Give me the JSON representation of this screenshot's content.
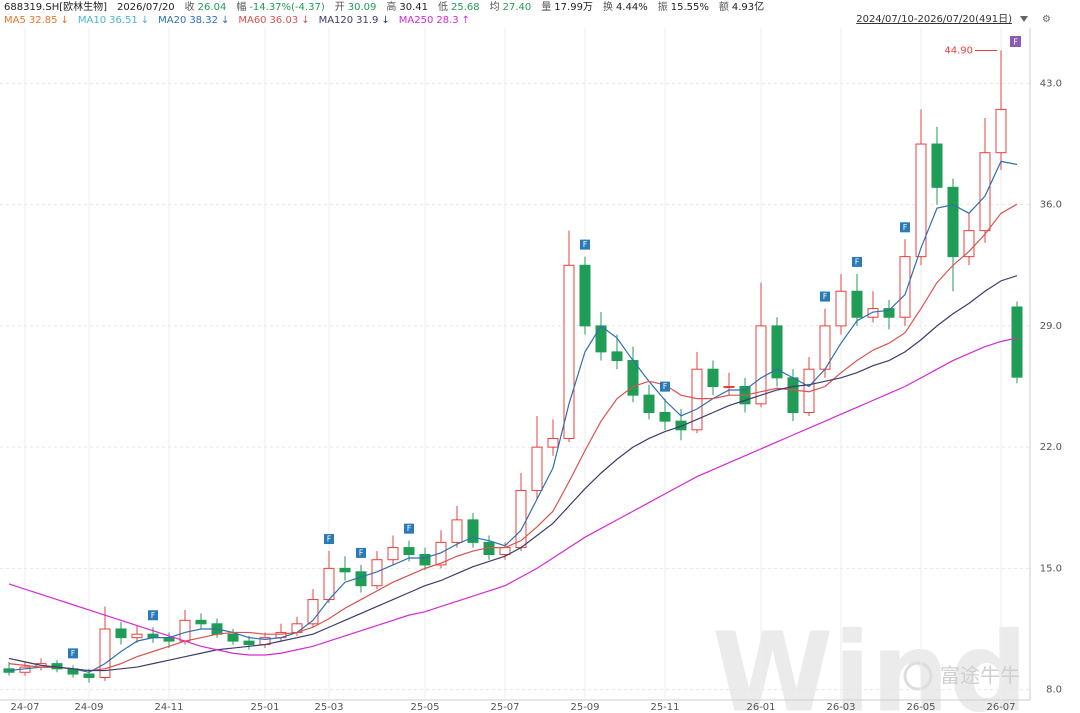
{
  "header": {
    "fields": [
      {
        "value": "688319.SH[欧林生物]",
        "color": "#222"
      },
      {
        "value": "2026/07/20",
        "color": "#222"
      },
      {
        "label": "收",
        "value": "26.04",
        "color": "#1f9d55"
      },
      {
        "label": "幅",
        "value": "-14.37%(-4.37)",
        "color": "#1f9d55"
      },
      {
        "label": "开",
        "value": "30.09",
        "color": "#1f9d55"
      },
      {
        "label": "高",
        "value": "30.41",
        "color": "#222"
      },
      {
        "label": "低",
        "value": "25.68",
        "color": "#1f9d55"
      },
      {
        "label": "均",
        "value": "27.40",
        "color": "#1f9d55"
      },
      {
        "label": "量",
        "value": "17.99万",
        "color": "#222"
      },
      {
        "label": "换",
        "value": "4.44%",
        "color": "#222"
      },
      {
        "label": "振",
        "value": "15.55%",
        "color": "#222"
      },
      {
        "label": "额",
        "value": "4.93亿",
        "color": "#222"
      }
    ],
    "range": "2024/07/10-2026/07/20(491日)"
  },
  "watermarks": [
    "Wind",
    "富途牛牛"
  ],
  "chart_data": {
    "type": "candlestick",
    "categories": [
      null,
      "24-07",
      null,
      null,
      null,
      "24-09",
      null,
      null,
      null,
      null,
      "24-11",
      null,
      null,
      null,
      null,
      null,
      "25-01",
      null,
      null,
      null,
      "25-03",
      null,
      null,
      null,
      null,
      null,
      "25-05",
      null,
      null,
      null,
      null,
      "25-07",
      null,
      null,
      null,
      null,
      "25-09",
      null,
      null,
      null,
      null,
      "25-11",
      null,
      null,
      null,
      null,
      null,
      "26-01",
      null,
      null,
      null,
      null,
      "26-03",
      null,
      null,
      null,
      null,
      "26-05",
      null,
      null,
      null,
      null,
      "26-07",
      null
    ],
    "up_color": "#e8413c",
    "down_color": "#1f9d55",
    "open": [
      9.2,
      9.0,
      9.3,
      9.5,
      9.2,
      8.9,
      8.7,
      11.5,
      11.0,
      11.2,
      11.0,
      10.8,
      12.0,
      11.8,
      11.2,
      10.8,
      10.6,
      11.0,
      11.3,
      11.8,
      13.2,
      15.0,
      14.8,
      14.0,
      15.5,
      16.2,
      15.8,
      15.2,
      16.5,
      17.8,
      16.5,
      15.8,
      16.2,
      19.5,
      22.0,
      22.5,
      32.5,
      29.0,
      27.5,
      27.0,
      25.0,
      24.0,
      23.5,
      23.0,
      26.5,
      25.5,
      25.5,
      24.5,
      29.0,
      26.0,
      24.0,
      26.5,
      29.0,
      31.0,
      29.5,
      30.0,
      29.5,
      33.0,
      39.5,
      37.0,
      33.0,
      34.5,
      39.0,
      30.09
    ],
    "high": [
      9.6,
      9.6,
      9.8,
      9.7,
      9.4,
      9.2,
      12.8,
      11.9,
      11.7,
      11.6,
      11.3,
      12.6,
      12.4,
      12.1,
      11.5,
      11.1,
      11.3,
      11.8,
      12.2,
      13.8,
      16.0,
      15.7,
      15.2,
      16.0,
      16.9,
      16.6,
      16.2,
      17.2,
      18.6,
      18.2,
      16.9,
      16.5,
      20.5,
      23.8,
      23.6,
      34.5,
      33.0,
      29.8,
      28.5,
      27.8,
      25.6,
      24.8,
      24.2,
      27.5,
      27.0,
      26.3,
      26.0,
      31.5,
      29.5,
      26.5,
      27.2,
      30.0,
      32.0,
      32.0,
      31.0,
      30.5,
      34.0,
      41.5,
      40.5,
      37.5,
      35.5,
      41.0,
      44.9,
      30.41
    ],
    "low": [
      8.8,
      8.8,
      9.1,
      9.0,
      8.7,
      8.4,
      8.5,
      10.6,
      10.7,
      10.7,
      10.4,
      10.6,
      11.5,
      11.0,
      10.6,
      10.3,
      10.4,
      10.8,
      11.1,
      11.6,
      13.0,
      14.3,
      13.6,
      13.8,
      15.2,
      15.4,
      14.9,
      15.0,
      16.2,
      16.2,
      15.5,
      15.5,
      16.0,
      19.0,
      21.5,
      22.3,
      28.5,
      27.0,
      26.5,
      24.6,
      23.6,
      23.0,
      22.4,
      22.8,
      25.0,
      25.0,
      24.0,
      24.3,
      25.5,
      23.5,
      23.8,
      26.0,
      28.5,
      29.0,
      29.2,
      28.8,
      29.0,
      32.5,
      36.0,
      31.0,
      32.5,
      33.8,
      38.0,
      25.68
    ],
    "close": [
      9.0,
      9.3,
      9.5,
      9.2,
      8.9,
      8.7,
      11.5,
      11.0,
      11.2,
      11.0,
      10.8,
      12.0,
      11.8,
      11.2,
      10.8,
      10.6,
      11.0,
      11.3,
      11.8,
      13.2,
      15.0,
      14.8,
      14.0,
      15.5,
      16.2,
      15.8,
      15.2,
      16.5,
      17.8,
      16.5,
      15.8,
      16.2,
      19.5,
      22.0,
      22.5,
      32.5,
      29.0,
      27.5,
      27.0,
      25.0,
      24.0,
      23.5,
      23.0,
      26.5,
      25.5,
      25.5,
      24.5,
      29.0,
      26.0,
      24.0,
      26.5,
      29.0,
      31.0,
      29.5,
      30.0,
      29.5,
      33.0,
      39.5,
      37.0,
      33.0,
      34.5,
      39.0,
      41.5,
      26.04
    ],
    "series": [
      {
        "name": "MA5",
        "color": "#e8742a",
        "last": 32.85,
        "trend": "↓"
      },
      {
        "name": "MA10",
        "color": "#4bb6c7",
        "last": 36.51,
        "trend": "↓"
      },
      {
        "name": "MA20",
        "color": "#2f6fb0",
        "last": 38.32,
        "trend": "↓",
        "values": [
          9.1,
          9.2,
          9.3,
          9.3,
          9.2,
          9.0,
          9.5,
          10.2,
          10.8,
          11.0,
          11.0,
          11.3,
          11.5,
          11.5,
          11.3,
          11.0,
          10.9,
          11.0,
          11.3,
          12.0,
          13.2,
          14.2,
          14.5,
          14.8,
          15.2,
          15.6,
          15.6,
          15.9,
          16.4,
          16.8,
          16.6,
          16.3,
          17.2,
          19.0,
          20.8,
          24.5,
          27.5,
          29.0,
          28.3,
          27.0,
          25.8,
          24.7,
          23.8,
          24.2,
          24.8,
          25.3,
          25.3,
          26.0,
          26.5,
          26.0,
          25.5,
          26.5,
          28.0,
          29.3,
          29.8,
          29.9,
          30.8,
          33.5,
          35.8,
          36.0,
          35.5,
          36.5,
          38.5,
          38.32
        ]
      },
      {
        "name": "MA60",
        "color": "#d9534f",
        "last": 36.03,
        "trend": "↓",
        "values": [
          9.5,
          9.4,
          9.3,
          9.3,
          9.2,
          9.1,
          9.2,
          9.5,
          9.9,
          10.2,
          10.5,
          10.8,
          11.0,
          11.2,
          11.3,
          11.3,
          11.2,
          11.2,
          11.3,
          11.6,
          12.1,
          12.7,
          13.2,
          13.7,
          14.2,
          14.6,
          15.0,
          15.3,
          15.7,
          16.0,
          16.2,
          16.2,
          16.6,
          17.4,
          18.3,
          20.0,
          21.8,
          23.5,
          24.8,
          25.5,
          25.8,
          25.6,
          25.0,
          24.8,
          24.8,
          25.0,
          25.0,
          25.2,
          25.4,
          25.3,
          25.2,
          25.5,
          26.3,
          27.0,
          27.6,
          28.0,
          28.6,
          30.0,
          31.5,
          32.5,
          33.3,
          34.3,
          35.5,
          36.03
        ]
      },
      {
        "name": "MA120",
        "color": "#3c3c6e",
        "last": 31.9,
        "trend": "↓",
        "values": [
          9.8,
          9.6,
          9.4,
          9.3,
          9.2,
          9.1,
          9.1,
          9.2,
          9.3,
          9.5,
          9.7,
          9.9,
          10.1,
          10.3,
          10.4,
          10.5,
          10.6,
          10.8,
          11.0,
          11.2,
          11.6,
          12.0,
          12.4,
          12.8,
          13.2,
          13.6,
          14.0,
          14.3,
          14.7,
          15.1,
          15.4,
          15.7,
          16.2,
          16.9,
          17.6,
          18.6,
          19.6,
          20.5,
          21.3,
          22.0,
          22.5,
          22.9,
          23.2,
          23.6,
          24.0,
          24.4,
          24.7,
          25.0,
          25.3,
          25.5,
          25.6,
          25.8,
          26.0,
          26.3,
          26.7,
          27.0,
          27.5,
          28.2,
          29.0,
          29.7,
          30.3,
          31.0,
          31.6,
          31.9
        ]
      },
      {
        "name": "MA250",
        "color": "#d42ad4",
        "last": 28.3,
        "trend": "↑",
        "values": [
          14.1,
          13.8,
          13.5,
          13.2,
          12.9,
          12.6,
          12.3,
          12.0,
          11.7,
          11.4,
          11.1,
          10.8,
          10.5,
          10.3,
          10.1,
          10.0,
          10.0,
          10.1,
          10.3,
          10.5,
          10.8,
          11.1,
          11.4,
          11.7,
          12.0,
          12.3,
          12.5,
          12.8,
          13.1,
          13.4,
          13.7,
          14.0,
          14.5,
          15.0,
          15.6,
          16.2,
          16.8,
          17.3,
          17.8,
          18.3,
          18.8,
          19.3,
          19.8,
          20.3,
          20.7,
          21.1,
          21.5,
          21.9,
          22.3,
          22.7,
          23.1,
          23.5,
          23.9,
          24.3,
          24.7,
          25.1,
          25.5,
          26.0,
          26.5,
          27.0,
          27.4,
          27.8,
          28.1,
          28.3
        ]
      }
    ],
    "ylim": [
      7.4,
      46.2
    ],
    "yticks": [
      {
        "value": 8,
        "label": "8.0"
      },
      {
        "value": 15,
        "label": "15.0"
      },
      {
        "value": 22,
        "label": "22.0"
      },
      {
        "value": 29,
        "label": "29.0"
      },
      {
        "value": 36,
        "label": "36.0"
      },
      {
        "value": 43,
        "label": "43.0"
      }
    ],
    "grid": true,
    "markers": {
      "label": "F",
      "color": "#2a7ab8",
      "indices": [
        4,
        9,
        20,
        22,
        25,
        36,
        41,
        51,
        53,
        56
      ]
    },
    "peak": {
      "index": 62,
      "value": 44.9,
      "label": "44.90"
    }
  }
}
